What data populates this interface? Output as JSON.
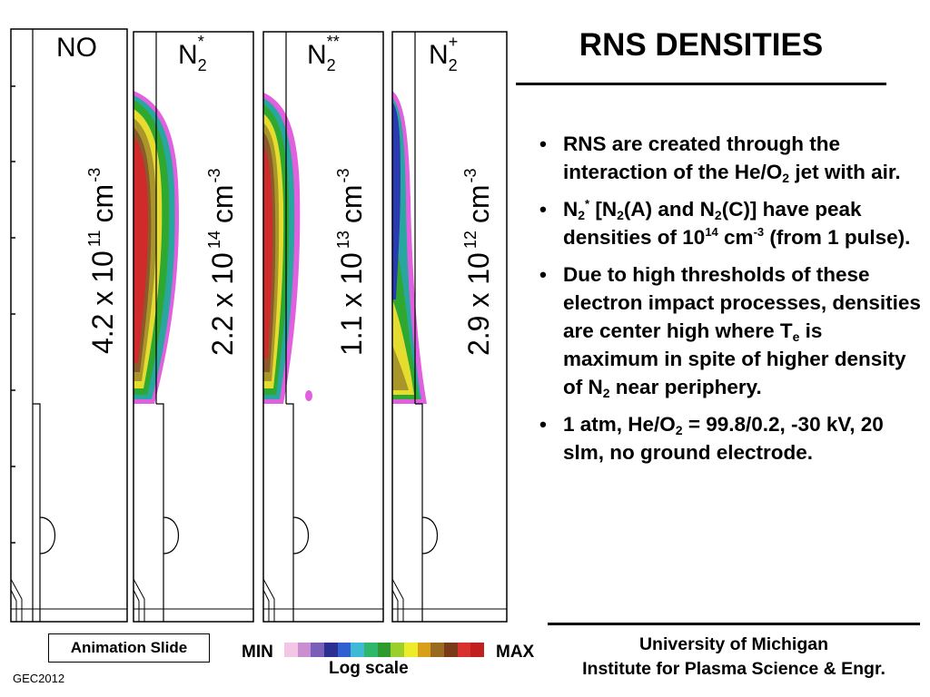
{
  "title": "RNS DENSITIES",
  "panels": [
    {
      "species_base": "NO",
      "species_sub": "",
      "species_sup": "",
      "density_mantissa": "4.2 x 10",
      "density_exp": "11",
      "density_unit": "cm",
      "density_unit_exp": "-3"
    },
    {
      "species_base": "N",
      "species_sub": "2",
      "species_sup": "*",
      "density_mantissa": "2.2 x 10",
      "density_exp": "14",
      "density_unit": "cm",
      "density_unit_exp": "-3"
    },
    {
      "species_base": "N",
      "species_sub": "2",
      "species_sup": "**",
      "density_mantissa": "1.1 x 10",
      "density_exp": "13",
      "density_unit": "cm",
      "density_unit_exp": "-3"
    },
    {
      "species_base": "N",
      "species_sub": "2",
      "species_sup": "+",
      "density_mantissa": "2.9 x 10",
      "density_exp": "12",
      "density_unit": "cm",
      "density_unit_exp": "-3"
    }
  ],
  "bullets": [
    {
      "parts": [
        [
          "t",
          "RNS are created through the interaction of the He/O"
        ],
        [
          "sub",
          "2"
        ],
        [
          "t",
          " jet with air."
        ]
      ]
    },
    {
      "parts": [
        [
          "t",
          "N"
        ],
        [
          "sub",
          "2"
        ],
        [
          "sup",
          "*"
        ],
        [
          "t",
          " [N"
        ],
        [
          "sub",
          "2"
        ],
        [
          "t",
          "(A) and N"
        ],
        [
          "sub",
          "2"
        ],
        [
          "t",
          "(C)] have peak densities of 10"
        ],
        [
          "sup",
          "14"
        ],
        [
          "t",
          " cm"
        ],
        [
          "sup",
          "-3"
        ],
        [
          "t",
          " (from 1 pulse)."
        ]
      ]
    },
    {
      "parts": [
        [
          "t",
          "Due to high thresholds of these electron impact processes, densities are center high where T"
        ],
        [
          "sub",
          "e"
        ],
        [
          "t",
          " is maximum in spite of higher density of N"
        ],
        [
          "sub",
          "2"
        ],
        [
          "t",
          " near periphery."
        ]
      ]
    },
    {
      "parts": [
        [
          "t",
          "1 atm, He/O"
        ],
        [
          "sub",
          "2"
        ],
        [
          "t",
          " = 99.8/0.2, -30 kV, 20 slm, no ground electrode."
        ]
      ]
    }
  ],
  "footer": {
    "animation_label": "Animation Slide",
    "conference": "GEC2012",
    "university_line1": "University of Michigan",
    "university_line2": "Institute for Plasma Science & Engr."
  },
  "colorbar": {
    "min_label": "MIN",
    "max_label": "MAX",
    "scale_label": "Log scale",
    "colors": [
      "#f2c6e4",
      "#c98fd0",
      "#7a5fb8",
      "#2b2f8f",
      "#2f5fd0",
      "#3fb9d6",
      "#2fb86a",
      "#2f9a2f",
      "#9bcf2a",
      "#ecec2a",
      "#d8a01a",
      "#9a6a20",
      "#7a3a1a",
      "#d93030",
      "#c02020"
    ]
  },
  "colors": {
    "red": "#d02a2a",
    "brown": "#8a5a2a",
    "olive": "#a8962a",
    "yellow": "#e6dc30",
    "green": "#2fa830",
    "teal": "#2aa6a0",
    "blue": "#2a3ab0",
    "magenta": "#e060e0"
  }
}
